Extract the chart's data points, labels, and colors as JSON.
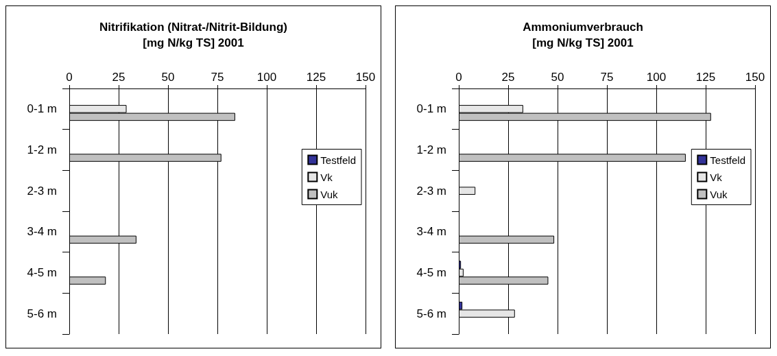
{
  "chart_data": [
    {
      "type": "bar",
      "orientation": "horizontal",
      "title": "Nitrifikation (Nitrat-/Nitrit-Bildung)\n[mg N/kg TS] 2001",
      "categories": [
        "0-1 m",
        "1-2 m",
        "2-3 m",
        "3-4 m",
        "4-5 m",
        "5-6 m"
      ],
      "series": [
        {
          "name": "Testfeld",
          "color": "#333399",
          "values": [
            null,
            null,
            null,
            null,
            null,
            null
          ]
        },
        {
          "name": "Vk",
          "color": "#e6e6e6",
          "values": [
            29,
            null,
            null,
            null,
            null,
            null
          ]
        },
        {
          "name": "Vuk",
          "color": "#c0c0c0",
          "values": [
            84,
            77,
            null,
            34,
            18.5,
            null
          ]
        }
      ],
      "xlim": [
        0,
        150
      ],
      "xticks": [
        0,
        25,
        50,
        75,
        100,
        125,
        150
      ],
      "grid": "x",
      "legend": "right"
    },
    {
      "type": "bar",
      "orientation": "horizontal",
      "title": "Ammoniumverbrauch\n[mg N/kg TS] 2001",
      "categories": [
        "0-1 m",
        "1-2 m",
        "2-3 m",
        "3-4 m",
        "4-5 m",
        "5-6 m"
      ],
      "series": [
        {
          "name": "Testfeld",
          "color": "#333399",
          "values": [
            null,
            null,
            null,
            null,
            1.1,
            1.8
          ]
        },
        {
          "name": "Vk",
          "color": "#e6e6e6",
          "values": [
            32.6,
            null,
            8.4,
            null,
            2.4,
            28.4
          ]
        },
        {
          "name": "Vuk",
          "color": "#c0c0c0",
          "values": [
            127.7,
            114.9,
            null,
            48.3,
            45.3,
            null
          ]
        }
      ],
      "xlim": [
        0,
        150
      ],
      "xticks": [
        0,
        25,
        50,
        75,
        100,
        125,
        150
      ],
      "grid": "x",
      "legend": "right"
    }
  ]
}
